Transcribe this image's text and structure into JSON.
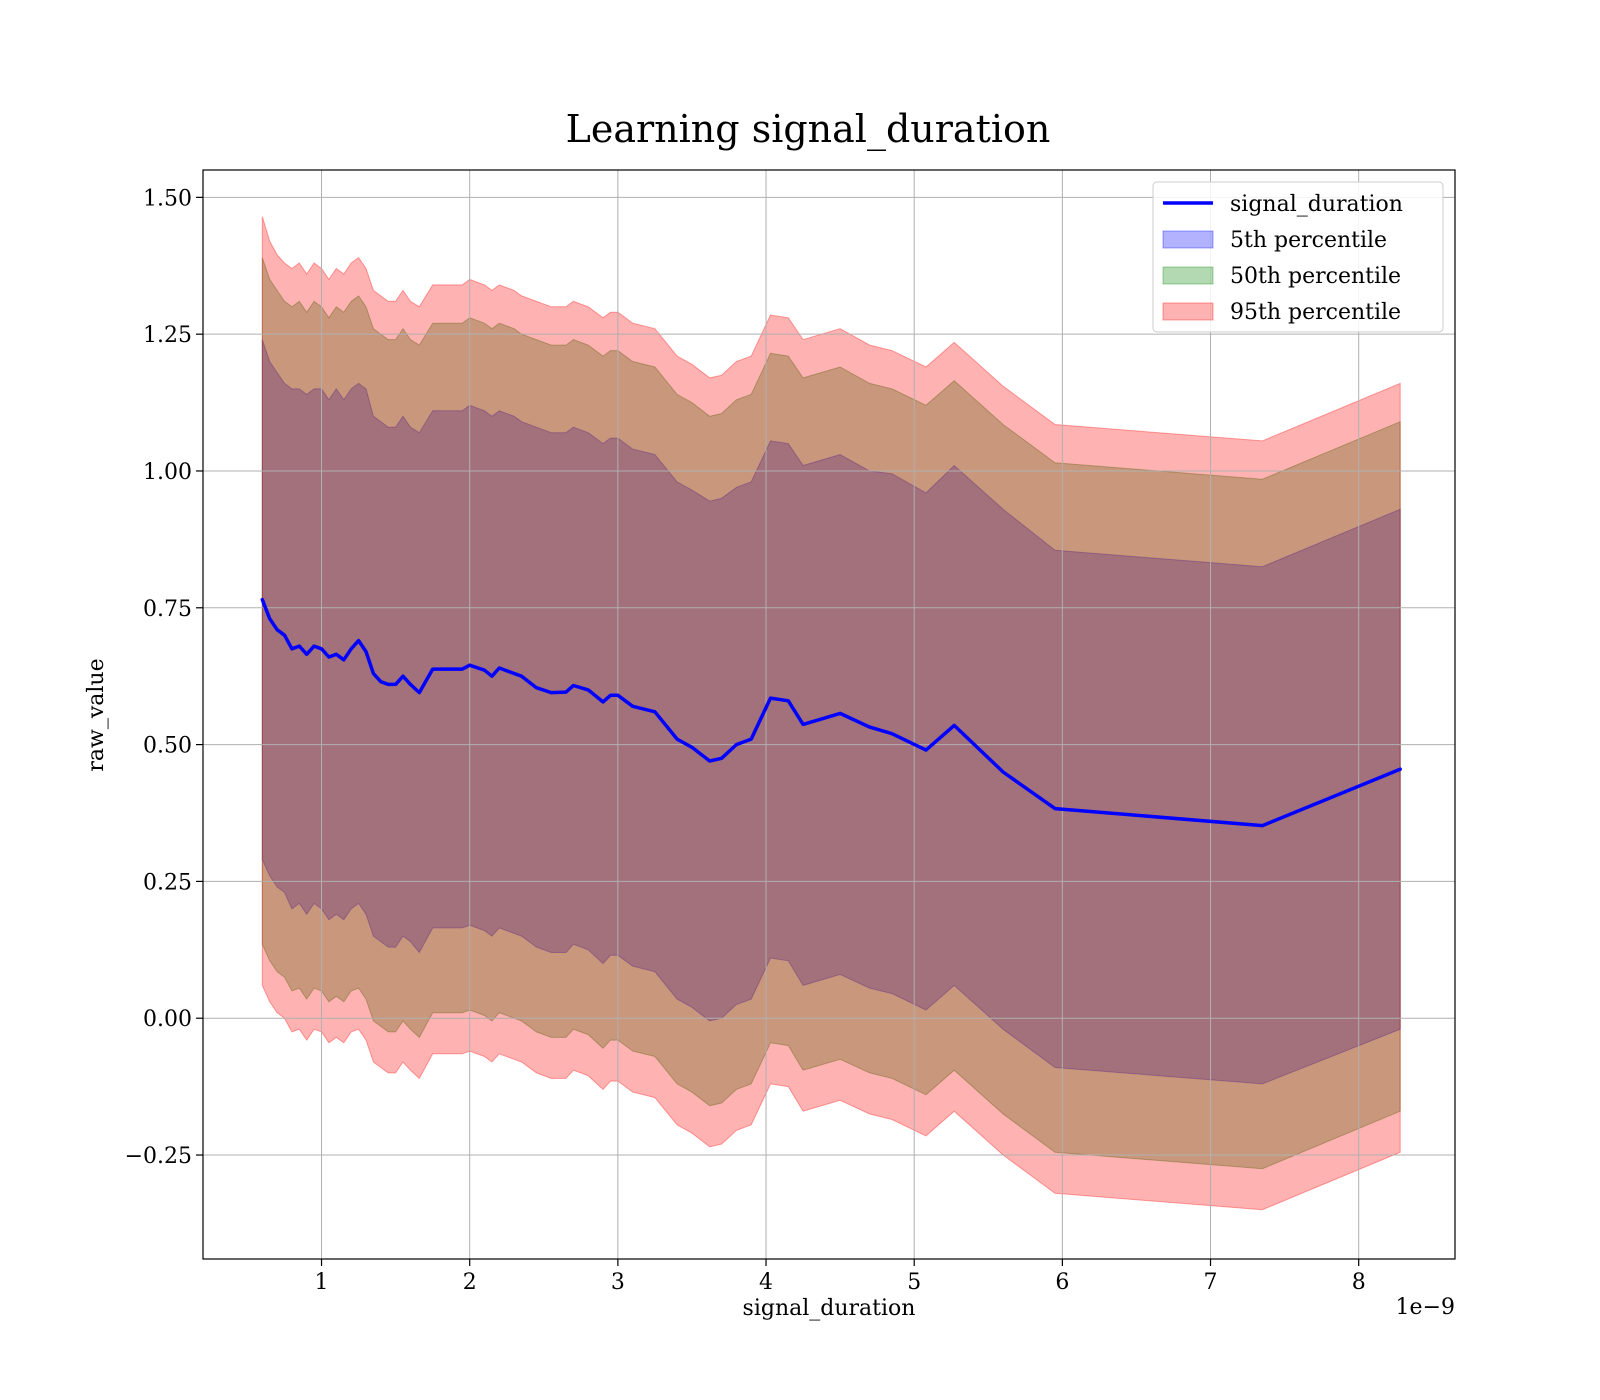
{
  "chart_data": {
    "type": "line",
    "title": "Learning signal_duration",
    "xlabel": "signal_duration",
    "ylabel": "raw_value",
    "x_offset_label": "1e−9",
    "xlim": [
      0.2,
      8.65
    ],
    "ylim": [
      -0.44,
      1.55
    ],
    "x_ticks": [
      1,
      2,
      3,
      4,
      5,
      6,
      7,
      8
    ],
    "x_tick_labels": [
      "1",
      "2",
      "3",
      "4",
      "5",
      "6",
      "7",
      "8"
    ],
    "y_ticks": [
      -0.25,
      0,
      0.25,
      0.5,
      0.75,
      1.0,
      1.25,
      1.5
    ],
    "y_tick_labels": [
      "−0.25",
      "0.00",
      "0.25",
      "0.50",
      "0.75",
      "1.00",
      "1.25",
      "1.50"
    ],
    "grid": true,
    "legend_position": "top-right",
    "legend": [
      {
        "label": "signal_duration",
        "kind": "line",
        "color": "#0000ff"
      },
      {
        "label": "5th percentile",
        "kind": "patch",
        "color": "#0000ff"
      },
      {
        "label": "50th percentile",
        "kind": "patch",
        "color": "#008000"
      },
      {
        "label": "95th percentile",
        "kind": "patch",
        "color": "#ff0000"
      }
    ],
    "x": [
      0.6,
      0.65,
      0.7,
      0.75,
      0.8,
      0.85,
      0.9,
      0.95,
      1.0,
      1.05,
      1.1,
      1.15,
      1.2,
      1.25,
      1.3,
      1.35,
      1.4,
      1.45,
      1.5,
      1.55,
      1.6,
      1.66,
      1.75,
      1.85,
      1.95,
      2.0,
      2.1,
      2.15,
      2.2,
      2.3,
      2.35,
      2.45,
      2.55,
      2.65,
      2.7,
      2.8,
      2.9,
      2.95,
      3.0,
      3.1,
      3.25,
      3.4,
      3.5,
      3.62,
      3.7,
      3.8,
      3.9,
      4.03,
      4.15,
      4.25,
      4.5,
      4.7,
      4.85,
      5.08,
      5.27,
      5.6,
      5.95,
      7.35,
      8.28
    ],
    "series": [
      {
        "name": "signal_duration",
        "color": "#0000ff",
        "values": [
          0.765,
          0.73,
          0.71,
          0.7,
          0.675,
          0.68,
          0.665,
          0.68,
          0.675,
          0.66,
          0.665,
          0.655,
          0.675,
          0.69,
          0.67,
          0.63,
          0.615,
          0.61,
          0.61,
          0.625,
          0.61,
          0.595,
          0.638,
          0.638,
          0.638,
          0.645,
          0.636,
          0.625,
          0.64,
          0.63,
          0.625,
          0.604,
          0.595,
          0.596,
          0.608,
          0.6,
          0.578,
          0.59,
          0.59,
          0.57,
          0.56,
          0.51,
          0.495,
          0.47,
          0.475,
          0.5,
          0.51,
          0.585,
          0.58,
          0.537,
          0.557,
          0.532,
          0.52,
          0.49,
          0.535,
          0.45,
          0.383,
          0.352,
          0.455
        ]
      }
    ],
    "bands": [
      {
        "name": "5th percentile",
        "color": "#0000ff",
        "upper": [
          1.24,
          1.2,
          1.18,
          1.16,
          1.15,
          1.15,
          1.14,
          1.15,
          1.15,
          1.13,
          1.15,
          1.13,
          1.15,
          1.16,
          1.15,
          1.1,
          1.09,
          1.08,
          1.08,
          1.1,
          1.08,
          1.07,
          1.11,
          1.11,
          1.11,
          1.12,
          1.11,
          1.1,
          1.11,
          1.1,
          1.09,
          1.08,
          1.07,
          1.07,
          1.08,
          1.07,
          1.05,
          1.06,
          1.06,
          1.04,
          1.03,
          0.98,
          0.965,
          0.945,
          0.95,
          0.97,
          0.98,
          1.055,
          1.05,
          1.01,
          1.03,
          1.0,
          0.995,
          0.96,
          1.01,
          0.93,
          0.855,
          0.825,
          0.93
        ],
        "lower": [
          0.29,
          0.26,
          0.24,
          0.23,
          0.2,
          0.21,
          0.19,
          0.21,
          0.2,
          0.18,
          0.19,
          0.18,
          0.2,
          0.21,
          0.19,
          0.15,
          0.14,
          0.13,
          0.13,
          0.15,
          0.14,
          0.12,
          0.165,
          0.165,
          0.165,
          0.17,
          0.16,
          0.15,
          0.165,
          0.155,
          0.15,
          0.13,
          0.12,
          0.12,
          0.135,
          0.125,
          0.1,
          0.115,
          0.115,
          0.095,
          0.085,
          0.035,
          0.02,
          -0.005,
          0.0,
          0.025,
          0.035,
          0.11,
          0.105,
          0.06,
          0.08,
          0.055,
          0.045,
          0.015,
          0.06,
          -0.02,
          -0.09,
          -0.12,
          -0.02
        ]
      },
      {
        "name": "50th percentile",
        "color": "#008000",
        "upper": [
          1.39,
          1.35,
          1.33,
          1.31,
          1.3,
          1.31,
          1.29,
          1.31,
          1.3,
          1.28,
          1.3,
          1.29,
          1.31,
          1.32,
          1.3,
          1.26,
          1.25,
          1.24,
          1.24,
          1.26,
          1.24,
          1.23,
          1.27,
          1.27,
          1.27,
          1.28,
          1.27,
          1.26,
          1.27,
          1.26,
          1.25,
          1.24,
          1.23,
          1.23,
          1.24,
          1.23,
          1.21,
          1.22,
          1.22,
          1.2,
          1.19,
          1.14,
          1.125,
          1.1,
          1.105,
          1.13,
          1.14,
          1.215,
          1.21,
          1.17,
          1.19,
          1.16,
          1.15,
          1.12,
          1.165,
          1.085,
          1.015,
          0.985,
          1.09
        ],
        "lower": [
          0.135,
          0.105,
          0.085,
          0.075,
          0.05,
          0.055,
          0.035,
          0.055,
          0.05,
          0.03,
          0.04,
          0.03,
          0.05,
          0.055,
          0.035,
          -0.005,
          -0.015,
          -0.025,
          -0.025,
          -0.005,
          -0.02,
          -0.035,
          0.01,
          0.01,
          0.01,
          0.015,
          0.005,
          -0.005,
          0.01,
          0.0,
          -0.005,
          -0.025,
          -0.035,
          -0.035,
          -0.02,
          -0.03,
          -0.055,
          -0.04,
          -0.04,
          -0.06,
          -0.07,
          -0.12,
          -0.135,
          -0.16,
          -0.155,
          -0.13,
          -0.12,
          -0.045,
          -0.05,
          -0.095,
          -0.075,
          -0.1,
          -0.11,
          -0.14,
          -0.095,
          -0.175,
          -0.245,
          -0.275,
          -0.17
        ]
      },
      {
        "name": "95th percentile",
        "color": "#ff0000",
        "upper": [
          1.465,
          1.42,
          1.395,
          1.38,
          1.37,
          1.38,
          1.36,
          1.38,
          1.37,
          1.35,
          1.37,
          1.36,
          1.38,
          1.39,
          1.37,
          1.33,
          1.32,
          1.31,
          1.31,
          1.33,
          1.31,
          1.3,
          1.34,
          1.34,
          1.34,
          1.35,
          1.34,
          1.33,
          1.34,
          1.33,
          1.32,
          1.31,
          1.3,
          1.3,
          1.31,
          1.3,
          1.28,
          1.29,
          1.29,
          1.27,
          1.26,
          1.21,
          1.195,
          1.17,
          1.175,
          1.2,
          1.21,
          1.285,
          1.28,
          1.24,
          1.26,
          1.23,
          1.22,
          1.19,
          1.235,
          1.155,
          1.085,
          1.055,
          1.16
        ],
        "lower": [
          0.06,
          0.03,
          0.01,
          0.0,
          -0.025,
          -0.02,
          -0.04,
          -0.02,
          -0.025,
          -0.045,
          -0.035,
          -0.045,
          -0.025,
          -0.02,
          -0.04,
          -0.08,
          -0.09,
          -0.1,
          -0.1,
          -0.08,
          -0.095,
          -0.11,
          -0.065,
          -0.065,
          -0.065,
          -0.06,
          -0.07,
          -0.08,
          -0.065,
          -0.075,
          -0.08,
          -0.1,
          -0.11,
          -0.11,
          -0.095,
          -0.105,
          -0.13,
          -0.115,
          -0.115,
          -0.135,
          -0.145,
          -0.195,
          -0.21,
          -0.235,
          -0.23,
          -0.205,
          -0.195,
          -0.12,
          -0.125,
          -0.17,
          -0.15,
          -0.175,
          -0.185,
          -0.215,
          -0.17,
          -0.25,
          -0.32,
          -0.35,
          -0.245
        ]
      }
    ]
  }
}
